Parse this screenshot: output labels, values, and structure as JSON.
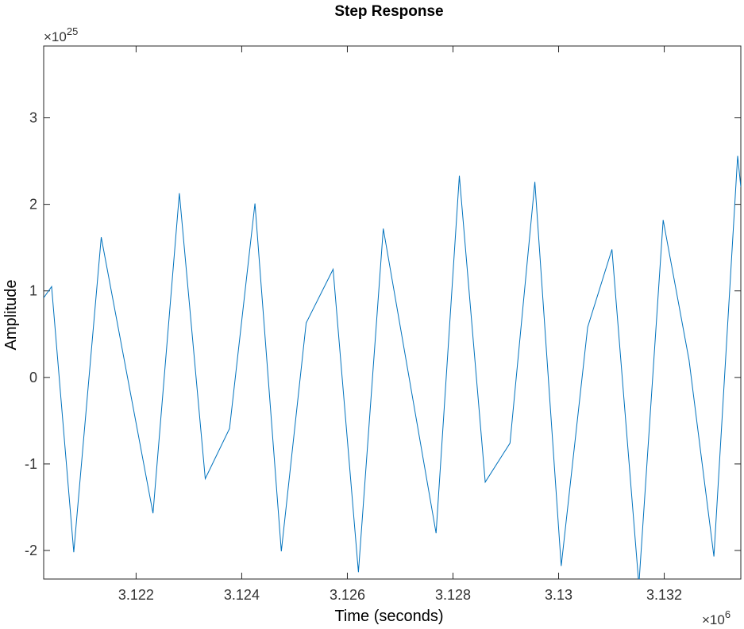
{
  "chart_data": {
    "type": "line",
    "title": "Step Response",
    "xlabel": "Time (seconds)",
    "ylabel": "Amplitude",
    "x_multiplier": {
      "base": "×10",
      "exponent": "6"
    },
    "y_multiplier": {
      "base": "×10",
      "exponent": "25"
    },
    "xlim": [
      3.12025,
      3.13345
    ],
    "ylim": [
      -2.33,
      3.83
    ],
    "xticks": [
      3.122,
      3.124,
      3.126,
      3.128,
      3.13,
      3.132
    ],
    "xtick_labels": [
      "3.122",
      "3.124",
      "3.126",
      "3.128",
      "3.13",
      "3.132"
    ],
    "yticks": [
      -2,
      -1,
      0,
      1,
      2,
      3
    ],
    "ytick_labels": [
      "-2",
      "-1",
      "0",
      "1",
      "2",
      "3"
    ],
    "grid": false,
    "line_color": "#0072BD",
    "series": [
      {
        "x": [
          3.12025,
          3.1204,
          3.12082,
          3.12134,
          3.12232,
          3.12282,
          3.12331,
          3.12377,
          3.12425,
          3.12475,
          3.12522,
          3.12573,
          3.12621,
          3.12668,
          3.12768,
          3.12812,
          3.12861,
          3.12908,
          3.12955,
          3.13005,
          3.13055,
          3.13101,
          3.13152,
          3.13198,
          3.13247,
          3.13294,
          3.13339,
          3.13345
        ],
        "y": [
          0.92,
          1.05,
          -2.02,
          1.62,
          -1.57,
          2.13,
          -1.17,
          -0.59,
          2.01,
          -2.01,
          0.63,
          1.25,
          -2.25,
          1.72,
          -1.8,
          2.33,
          -1.21,
          -0.76,
          2.26,
          -2.18,
          0.58,
          1.48,
          -2.4,
          1.82,
          0.2,
          -2.07,
          2.56,
          2.2
        ]
      }
    ]
  }
}
